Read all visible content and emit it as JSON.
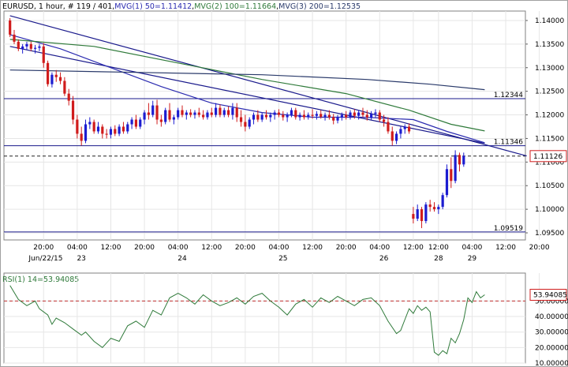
{
  "chart_data": {
    "type": "candlestick",
    "header": {
      "symbol": "EURUSD",
      "timeframe": ", 1 hour",
      "bar_info": ", # 119 / 401",
      "mvg1": "MVG(1) 50=1.11412",
      "mvg2": "MVG(2) 100=1.11664",
      "mvg3": "MVG(3) 200=1.12535",
      "sep": ","
    },
    "price_axis": {
      "ylim": [
        1.0935,
        1.142
      ],
      "ticks": [
        "1.14000",
        "1.13500",
        "1.13000",
        "1.12500",
        "1.12000",
        "1.11500",
        "1.11000",
        "1.10500",
        "1.10000",
        "1.09500"
      ],
      "tick_values": [
        1.14,
        1.135,
        1.13,
        1.125,
        1.12,
        1.115,
        1.11,
        1.105,
        1.1,
        1.095
      ],
      "current_price_label": "1.11126",
      "current_price": 1.11126
    },
    "time_axis": {
      "hour_labels": [
        {
          "t": 8,
          "text": "20:00"
        },
        {
          "t": 16,
          "text": "04:00"
        },
        {
          "t": 24,
          "text": "12:00"
        },
        {
          "t": 32,
          "text": "20:00"
        },
        {
          "t": 40,
          "text": "04:00"
        },
        {
          "t": 48,
          "text": "12:00"
        },
        {
          "t": 56,
          "text": "20:00"
        },
        {
          "t": 64,
          "text": "04:00"
        },
        {
          "t": 72,
          "text": "12:00"
        },
        {
          "t": 80,
          "text": "20:00"
        },
        {
          "t": 88,
          "text": "04:00"
        },
        {
          "t": 96,
          "text": "12:00"
        },
        {
          "t": 102,
          "text": "12:00"
        },
        {
          "t": 110,
          "text": "04:00"
        },
        {
          "t": 118,
          "text": "12:00"
        },
        {
          "t": 126,
          "text": "20:00"
        }
      ],
      "date_labels": [
        {
          "t": 8.5,
          "text": "Jun/22/15"
        },
        {
          "t": 17,
          "text": "23"
        },
        {
          "t": 41,
          "text": "24"
        },
        {
          "t": 65,
          "text": "25"
        },
        {
          "t": 89,
          "text": "26"
        },
        {
          "t": 102,
          "text": "28"
        },
        {
          "t": 110,
          "text": "29"
        }
      ]
    },
    "horizontal_lines": [
      {
        "value": 1.12344,
        "label": "1.12344",
        "style": "solid"
      },
      {
        "value": 1.11346,
        "label": "1.11346",
        "style": "solid"
      },
      {
        "value": 1.09519,
        "label": "1.09519",
        "style": "solid"
      },
      {
        "value": 1.11126,
        "label": "",
        "style": "dashed"
      }
    ],
    "trend_lines": [
      {
        "from": [
          0,
          1.141
        ],
        "to": [
          123,
          1.1113
        ]
      },
      {
        "from": [
          0,
          1.1345
        ],
        "to": [
          113,
          1.114
        ]
      }
    ],
    "moving_averages": [
      {
        "name": "MVG(1) 50",
        "color": "#2b2bb0",
        "points": [
          [
            0,
            1.137
          ],
          [
            12,
            1.134
          ],
          [
            24,
            1.13
          ],
          [
            36,
            1.126
          ],
          [
            48,
            1.1225
          ],
          [
            60,
            1.1205
          ],
          [
            72,
            1.1195
          ],
          [
            84,
            1.1195
          ],
          [
            96,
            1.119
          ],
          [
            104,
            1.1165
          ],
          [
            113,
            1.1141
          ]
        ]
      },
      {
        "name": "MVG(2) 100",
        "color": "#2f7a3a",
        "points": [
          [
            0,
            1.136
          ],
          [
            20,
            1.1345
          ],
          [
            40,
            1.131
          ],
          [
            60,
            1.1275
          ],
          [
            80,
            1.1245
          ],
          [
            95,
            1.121
          ],
          [
            105,
            1.118
          ],
          [
            113,
            1.1166
          ]
        ]
      },
      {
        "name": "MVG(3) 200",
        "color": "#2a3a6a",
        "points": [
          [
            0,
            1.1295
          ],
          [
            30,
            1.129
          ],
          [
            60,
            1.1285
          ],
          [
            85,
            1.1275
          ],
          [
            100,
            1.1265
          ],
          [
            113,
            1.12535
          ]
        ]
      }
    ],
    "candles": [
      [
        1.14,
        1.1405,
        1.1365,
        1.137
      ],
      [
        1.137,
        1.138,
        1.135,
        1.1355
      ],
      [
        1.1355,
        1.136,
        1.1335,
        1.134
      ],
      [
        1.134,
        1.135,
        1.133,
        1.1345
      ],
      [
        1.1345,
        1.1355,
        1.1338,
        1.135
      ],
      [
        1.135,
        1.1355,
        1.1335,
        1.134
      ],
      [
        1.134,
        1.1348,
        1.133,
        1.1342
      ],
      [
        1.1342,
        1.135,
        1.1335,
        1.1345
      ],
      [
        1.1345,
        1.1352,
        1.13,
        1.131
      ],
      [
        1.131,
        1.1315,
        1.126,
        1.1265
      ],
      [
        1.1265,
        1.129,
        1.1258,
        1.1285
      ],
      [
        1.1285,
        1.1295,
        1.127,
        1.128
      ],
      [
        1.128,
        1.129,
        1.1265,
        1.1272
      ],
      [
        1.1272,
        1.128,
        1.124,
        1.1245
      ],
      [
        1.1245,
        1.1255,
        1.122,
        1.123
      ],
      [
        1.123,
        1.124,
        1.118,
        1.119
      ],
      [
        1.119,
        1.12,
        1.115,
        1.116
      ],
      [
        1.116,
        1.1175,
        1.1135,
        1.1145
      ],
      [
        1.1145,
        1.119,
        1.114,
        1.118
      ],
      [
        1.118,
        1.1195,
        1.117,
        1.1185
      ],
      [
        1.1185,
        1.119,
        1.116,
        1.1165
      ],
      [
        1.1165,
        1.1185,
        1.116,
        1.1175
      ],
      [
        1.1175,
        1.118,
        1.115,
        1.116
      ],
      [
        1.116,
        1.117,
        1.115,
        1.1158
      ],
      [
        1.1158,
        1.1175,
        1.115,
        1.117
      ],
      [
        1.117,
        1.1178,
        1.1155,
        1.116
      ],
      [
        1.116,
        1.118,
        1.1155,
        1.1175
      ],
      [
        1.1175,
        1.1185,
        1.116,
        1.1165
      ],
      [
        1.1165,
        1.1185,
        1.116,
        1.118
      ],
      [
        1.118,
        1.1195,
        1.117,
        1.119
      ],
      [
        1.119,
        1.12,
        1.117,
        1.1175
      ],
      [
        1.1175,
        1.1195,
        1.117,
        1.119
      ],
      [
        1.119,
        1.121,
        1.118,
        1.1205
      ],
      [
        1.1205,
        1.1225,
        1.119,
        1.12
      ],
      [
        1.12,
        1.123,
        1.1195,
        1.122
      ],
      [
        1.122,
        1.1232,
        1.118,
        1.119
      ],
      [
        1.119,
        1.12,
        1.1175,
        1.1185
      ],
      [
        1.1185,
        1.1215,
        1.118,
        1.121
      ],
      [
        1.121,
        1.1225,
        1.1185,
        1.119
      ],
      [
        1.119,
        1.12,
        1.118,
        1.1195
      ],
      [
        1.1195,
        1.1215,
        1.119,
        1.121
      ],
      [
        1.121,
        1.122,
        1.1195,
        1.12
      ],
      [
        1.12,
        1.121,
        1.119,
        1.1205
      ],
      [
        1.1205,
        1.1212,
        1.1195,
        1.12
      ],
      [
        1.12,
        1.121,
        1.1192,
        1.1205
      ],
      [
        1.1205,
        1.1215,
        1.1195,
        1.12
      ],
      [
        1.12,
        1.121,
        1.119,
        1.1195
      ],
      [
        1.1195,
        1.121,
        1.119,
        1.1205
      ],
      [
        1.1205,
        1.1215,
        1.1195,
        1.12
      ],
      [
        1.12,
        1.1225,
        1.1195,
        1.1215
      ],
      [
        1.1215,
        1.1222,
        1.1195,
        1.12
      ],
      [
        1.12,
        1.1215,
        1.1195,
        1.121
      ],
      [
        1.121,
        1.1218,
        1.1195,
        1.12
      ],
      [
        1.12,
        1.1225,
        1.119,
        1.1215
      ],
      [
        1.1215,
        1.1225,
        1.1185,
        1.1195
      ],
      [
        1.1195,
        1.121,
        1.1175,
        1.1185
      ],
      [
        1.1185,
        1.12,
        1.1165,
        1.1175
      ],
      [
        1.1175,
        1.1195,
        1.117,
        1.119
      ],
      [
        1.119,
        1.1205,
        1.118,
        1.12
      ],
      [
        1.12,
        1.121,
        1.1185,
        1.119
      ],
      [
        1.119,
        1.1205,
        1.1185,
        1.12
      ],
      [
        1.12,
        1.121,
        1.119,
        1.1195
      ],
      [
        1.1195,
        1.1205,
        1.1185,
        1.12
      ],
      [
        1.12,
        1.121,
        1.119,
        1.1205
      ],
      [
        1.1205,
        1.1212,
        1.1195,
        1.12
      ],
      [
        1.12,
        1.1208,
        1.1188,
        1.1195
      ],
      [
        1.1195,
        1.1205,
        1.1185,
        1.12
      ],
      [
        1.12,
        1.1215,
        1.1195,
        1.121
      ],
      [
        1.121,
        1.1215,
        1.119,
        1.1195
      ],
      [
        1.1195,
        1.1205,
        1.1188,
        1.12
      ],
      [
        1.12,
        1.121,
        1.119,
        1.1195
      ],
      [
        1.1195,
        1.1205,
        1.119,
        1.12
      ],
      [
        1.12,
        1.1212,
        1.1192,
        1.1198
      ],
      [
        1.1198,
        1.1208,
        1.119,
        1.1202
      ],
      [
        1.1202,
        1.121,
        1.1192,
        1.1196
      ],
      [
        1.1196,
        1.1205,
        1.1188,
        1.12
      ],
      [
        1.12,
        1.121,
        1.119,
        1.1195
      ],
      [
        1.1195,
        1.1202,
        1.118,
        1.1188
      ],
      [
        1.1188,
        1.12,
        1.1182,
        1.1195
      ],
      [
        1.1195,
        1.1205,
        1.1188,
        1.12
      ],
      [
        1.12,
        1.1208,
        1.119,
        1.1195
      ],
      [
        1.1195,
        1.121,
        1.119,
        1.1205
      ],
      [
        1.1205,
        1.1212,
        1.1192,
        1.1198
      ],
      [
        1.1198,
        1.121,
        1.119,
        1.1205
      ],
      [
        1.1205,
        1.1215,
        1.1195,
        1.12
      ],
      [
        1.12,
        1.121,
        1.1188,
        1.1195
      ],
      [
        1.1195,
        1.1208,
        1.119,
        1.1202
      ],
      [
        1.1202,
        1.1212,
        1.1195,
        1.1205
      ],
      [
        1.1205,
        1.121,
        1.1185,
        1.119
      ],
      [
        1.119,
        1.12,
        1.1175,
        1.1185
      ],
      [
        1.1185,
        1.1195,
        1.116,
        1.1165
      ],
      [
        1.1165,
        1.1175,
        1.1135,
        1.1145
      ],
      [
        1.1145,
        1.1165,
        1.1138,
        1.116
      ],
      [
        1.116,
        1.1175,
        1.115,
        1.117
      ],
      [
        1.117,
        1.118,
        1.116,
        1.1175
      ],
      [
        1.1175,
        1.1182,
        1.116,
        1.1165
      ],
      [
        1.099,
        1.1005,
        1.097,
        1.098
      ],
      [
        1.098,
        1.101,
        1.0975,
        1.1
      ],
      [
        1.1,
        1.1005,
        1.096,
        1.0975
      ],
      [
        1.0975,
        1.1015,
        1.097,
        1.101
      ],
      [
        1.101,
        1.102,
        1.0995,
        1.1005
      ],
      [
        1.1005,
        1.1015,
        1.0995,
        1.1
      ],
      [
        1.1,
        1.101,
        1.099,
        1.1005
      ],
      [
        1.1005,
        1.1035,
        1.1,
        1.103
      ],
      [
        1.103,
        1.1095,
        1.1025,
        1.1085
      ],
      [
        1.1085,
        1.111,
        1.1045,
        1.106
      ],
      [
        1.106,
        1.1125,
        1.1055,
        1.1115
      ],
      [
        1.1115,
        1.112,
        1.108,
        1.1095
      ],
      [
        1.1095,
        1.112,
        1.109,
        1.1113
      ]
    ],
    "rsi": {
      "label": "RSI(1) 14=53.94085",
      "value_label": "53.94085",
      "ylim": [
        10,
        68
      ],
      "ticks": [
        "50.00000",
        "40.00000",
        "30.00000",
        "20.00000",
        "10.00000"
      ],
      "tick_values": [
        50,
        40,
        30,
        20,
        10
      ],
      "level_line": 50,
      "points": [
        [
          0,
          60
        ],
        [
          2,
          51
        ],
        [
          4,
          47
        ],
        [
          6,
          50
        ],
        [
          7,
          45
        ],
        [
          9,
          41
        ],
        [
          10,
          35
        ],
        [
          11,
          39
        ],
        [
          13,
          36
        ],
        [
          15,
          32
        ],
        [
          17,
          28
        ],
        [
          18,
          30
        ],
        [
          20,
          24
        ],
        [
          22,
          20
        ],
        [
          24,
          26
        ],
        [
          26,
          24
        ],
        [
          28,
          34
        ],
        [
          30,
          37
        ],
        [
          32,
          33
        ],
        [
          34,
          44
        ],
        [
          36,
          41
        ],
        [
          38,
          52
        ],
        [
          40,
          55
        ],
        [
          42,
          52
        ],
        [
          44,
          48
        ],
        [
          46,
          54
        ],
        [
          48,
          50
        ],
        [
          50,
          47
        ],
        [
          52,
          49
        ],
        [
          54,
          52
        ],
        [
          56,
          48
        ],
        [
          58,
          53
        ],
        [
          60,
          55
        ],
        [
          62,
          50
        ],
        [
          64,
          46
        ],
        [
          66,
          41
        ],
        [
          68,
          48
        ],
        [
          70,
          51
        ],
        [
          72,
          46
        ],
        [
          74,
          52
        ],
        [
          76,
          49
        ],
        [
          78,
          53
        ],
        [
          80,
          50
        ],
        [
          82,
          47
        ],
        [
          84,
          51
        ],
        [
          86,
          52
        ],
        [
          88,
          47
        ],
        [
          90,
          37
        ],
        [
          92,
          29
        ],
        [
          93,
          31
        ],
        [
          94,
          38
        ],
        [
          95,
          45
        ],
        [
          96,
          42
        ],
        [
          97,
          47
        ],
        [
          98,
          44
        ],
        [
          99,
          46
        ],
        [
          100,
          43
        ],
        [
          101,
          17
        ],
        [
          102,
          15
        ],
        [
          103,
          18
        ],
        [
          104,
          16
        ],
        [
          105,
          26
        ],
        [
          106,
          23
        ],
        [
          107,
          29
        ],
        [
          108,
          38
        ],
        [
          109,
          52
        ],
        [
          110,
          49
        ],
        [
          111,
          56
        ],
        [
          112,
          52
        ],
        [
          113,
          54
        ]
      ]
    }
  }
}
